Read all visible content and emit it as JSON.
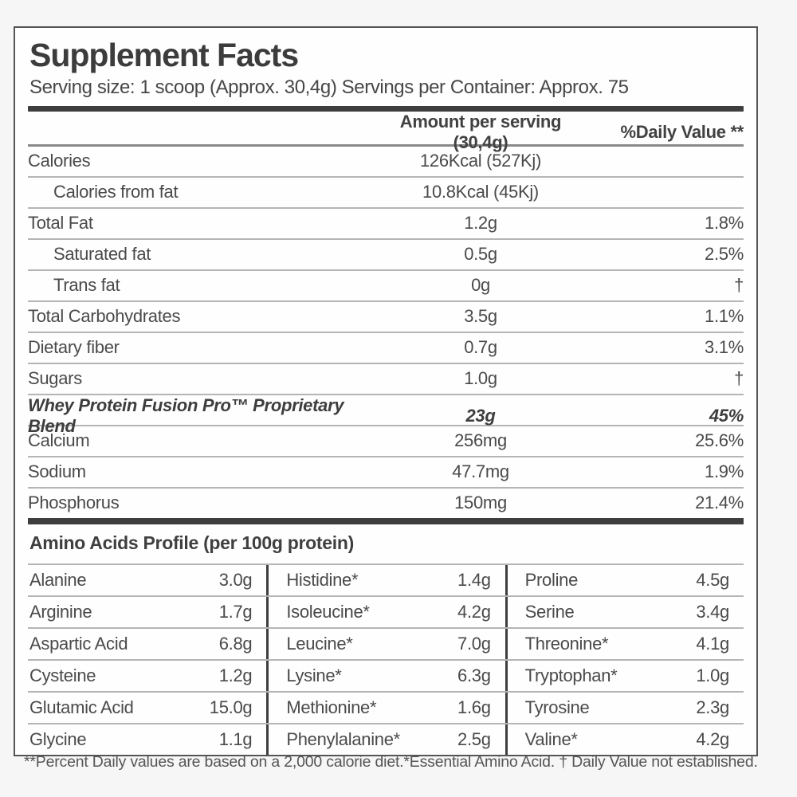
{
  "label": {
    "title": "Supplement Facts",
    "serving_line": "Serving size: 1 scoop (Approx. 30,4g) Servings per Container: Approx. 75",
    "columns": {
      "amount_header": "Amount per serving (30,4g)",
      "dv_header": "%Daily Value **"
    },
    "nutrition_rows": [
      {
        "name": "Calories",
        "amount": "126Kcal (527Kj)",
        "dv": "",
        "indent": false,
        "emphasis": false
      },
      {
        "name": "Calories from fat",
        "amount": "10.8Kcal (45Kj)",
        "dv": "",
        "indent": true,
        "emphasis": false
      },
      {
        "name": "Total Fat",
        "amount": "1.2g",
        "dv": "1.8%",
        "indent": false,
        "emphasis": false
      },
      {
        "name": "Saturated fat",
        "amount": "0.5g",
        "dv": "2.5%",
        "indent": true,
        "emphasis": false
      },
      {
        "name": "Trans fat",
        "amount": "0g",
        "dv": "†",
        "indent": true,
        "emphasis": false
      },
      {
        "name": "Total Carbohydrates",
        "amount": "3.5g",
        "dv": "1.1%",
        "indent": false,
        "emphasis": false
      },
      {
        "name": "Dietary fiber",
        "amount": "0.7g",
        "dv": "3.1%",
        "indent": false,
        "emphasis": false
      },
      {
        "name": "Sugars",
        "amount": "1.0g",
        "dv": "†",
        "indent": false,
        "emphasis": false
      },
      {
        "name": "Whey Protein Fusion Pro™ Proprietary Blend",
        "amount": "23g",
        "dv": "45%",
        "indent": false,
        "emphasis": true
      },
      {
        "name": "Calcium",
        "amount": "256mg",
        "dv": "25.6%",
        "indent": false,
        "emphasis": false
      },
      {
        "name": "Sodium",
        "amount": "47.7mg",
        "dv": "1.9%",
        "indent": false,
        "emphasis": false
      },
      {
        "name": "Phosphorus",
        "amount": "150mg",
        "dv": "21.4%",
        "indent": false,
        "emphasis": false
      }
    ],
    "amino_section": {
      "title": "Amino Acids Profile (per 100g protein)",
      "rows": [
        [
          {
            "name": "Alanine",
            "value": "3.0g"
          },
          {
            "name": "Histidine*",
            "value": "1.4g"
          },
          {
            "name": "Proline",
            "value": "4.5g"
          }
        ],
        [
          {
            "name": "Arginine",
            "value": "1.7g"
          },
          {
            "name": "Isoleucine*",
            "value": "4.2g"
          },
          {
            "name": "Serine",
            "value": "3.4g"
          }
        ],
        [
          {
            "name": "Aspartic Acid",
            "value": "6.8g"
          },
          {
            "name": "Leucine*",
            "value": "7.0g"
          },
          {
            "name": "Threonine*",
            "value": "4.1g"
          }
        ],
        [
          {
            "name": "Cysteine",
            "value": "1.2g"
          },
          {
            "name": "Lysine*",
            "value": "6.3g"
          },
          {
            "name": "Tryptophan*",
            "value": "1.0g"
          }
        ],
        [
          {
            "name": "Glutamic Acid",
            "value": "15.0g"
          },
          {
            "name": "Methionine*",
            "value": "1.6g"
          },
          {
            "name": "Tyrosine",
            "value": "2.3g"
          }
        ],
        [
          {
            "name": "Glycine",
            "value": "1.1g"
          },
          {
            "name": "Phenylalanine*",
            "value": "2.5g"
          },
          {
            "name": "Valine*",
            "value": "4.2g"
          }
        ]
      ]
    },
    "footnote": "**Percent Daily values are based on a 2,000 calorie diet.*Essential Amino Acid. † Daily Value not established.",
    "colors": {
      "text": "#4a4a4a",
      "rule_light": "#b5b5b5",
      "rule_dark": "#3e3e3e",
      "box_border": "#555555",
      "page_background": "#f6f6f6"
    }
  }
}
